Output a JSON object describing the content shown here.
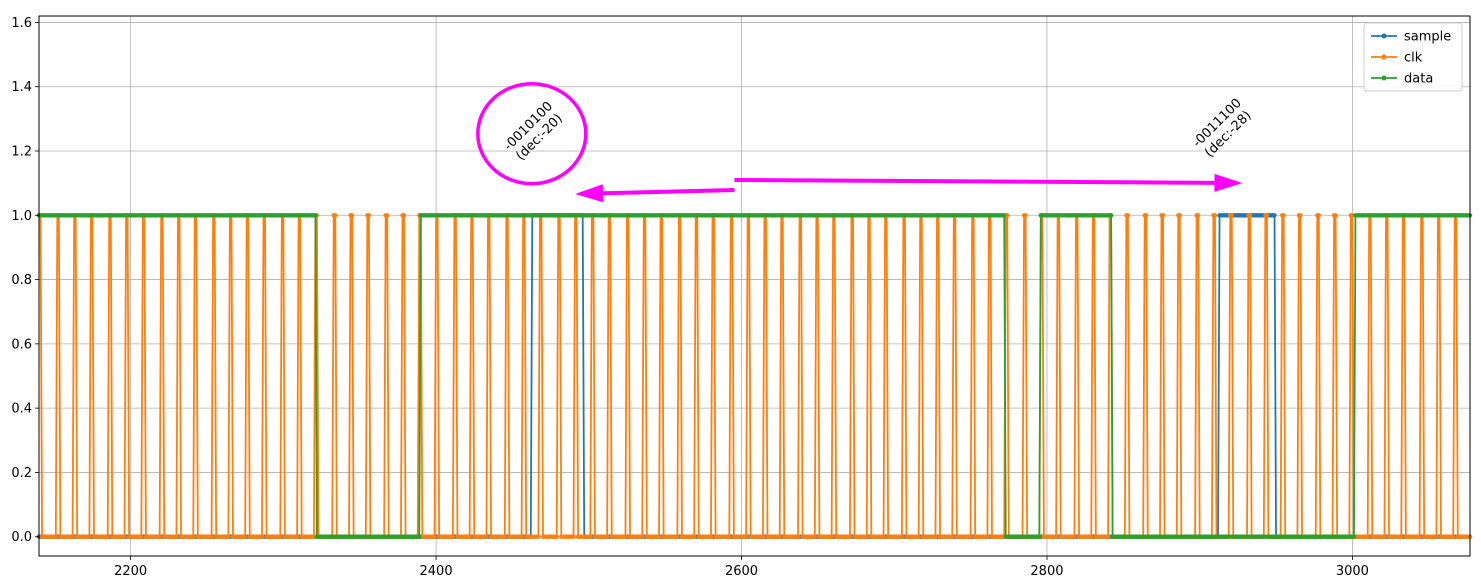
{
  "chart_data": {
    "type": "line",
    "title": "",
    "xlabel": "",
    "ylabel": "",
    "xlim": [
      2140,
      3077
    ],
    "ylim": [
      -0.06,
      1.62
    ],
    "xticks": [
      2200,
      2400,
      2600,
      2800,
      3000
    ],
    "xtick_labels": [
      "2200",
      "2400",
      "2600",
      "2800",
      "3000"
    ],
    "yticks": [
      0.0,
      0.2,
      0.4,
      0.6,
      0.8,
      1.0,
      1.2,
      1.4,
      1.6
    ],
    "ytick_labels": [
      "0.0",
      "0.2",
      "0.4",
      "0.6",
      "0.8",
      "1.0",
      "1.2",
      "1.4",
      "1.6"
    ],
    "grid": true,
    "legend": {
      "position": "upper-right",
      "entries": [
        "sample",
        "clk",
        "data"
      ]
    },
    "series": [
      {
        "name": "sample",
        "color": "#1f77b4",
        "steps": [
          {
            "x": 2140,
            "y": 0
          },
          {
            "x": 2463,
            "y": 1
          },
          {
            "x": 2497,
            "y": 0
          },
          {
            "x": 2913,
            "y": 1
          },
          {
            "x": 2950,
            "y": 0
          },
          {
            "x": 3077,
            "y": 0
          }
        ]
      },
      {
        "name": "clk",
        "color": "#ff7f0e",
        "clock": {
          "start": 2140,
          "end": 3077,
          "period": 11.3,
          "high_duration": 2,
          "start_level": 1
        }
      },
      {
        "name": "data",
        "color": "#2ca02c",
        "steps": [
          {
            "x": 2140,
            "y": 1
          },
          {
            "x": 2322,
            "y": 0
          },
          {
            "x": 2390,
            "y": 1
          },
          {
            "x": 2773,
            "y": 0
          },
          {
            "x": 2796,
            "y": 1
          },
          {
            "x": 2843,
            "y": 0
          },
          {
            "x": 3002,
            "y": 1
          },
          {
            "x": 3077,
            "y": 1
          }
        ]
      }
    ],
    "annotations": [
      {
        "text_lines": [
          "-0010100",
          "(dec:-20)"
        ],
        "x": 2464,
        "y": 1.26,
        "rotation": -45,
        "highlight": "circle"
      },
      {
        "text_lines": [
          "-0011100",
          "(dec:-28)"
        ],
        "x": 2915,
        "y": 1.27,
        "rotation": -45
      }
    ],
    "highlight_color": "#ff00ff"
  }
}
